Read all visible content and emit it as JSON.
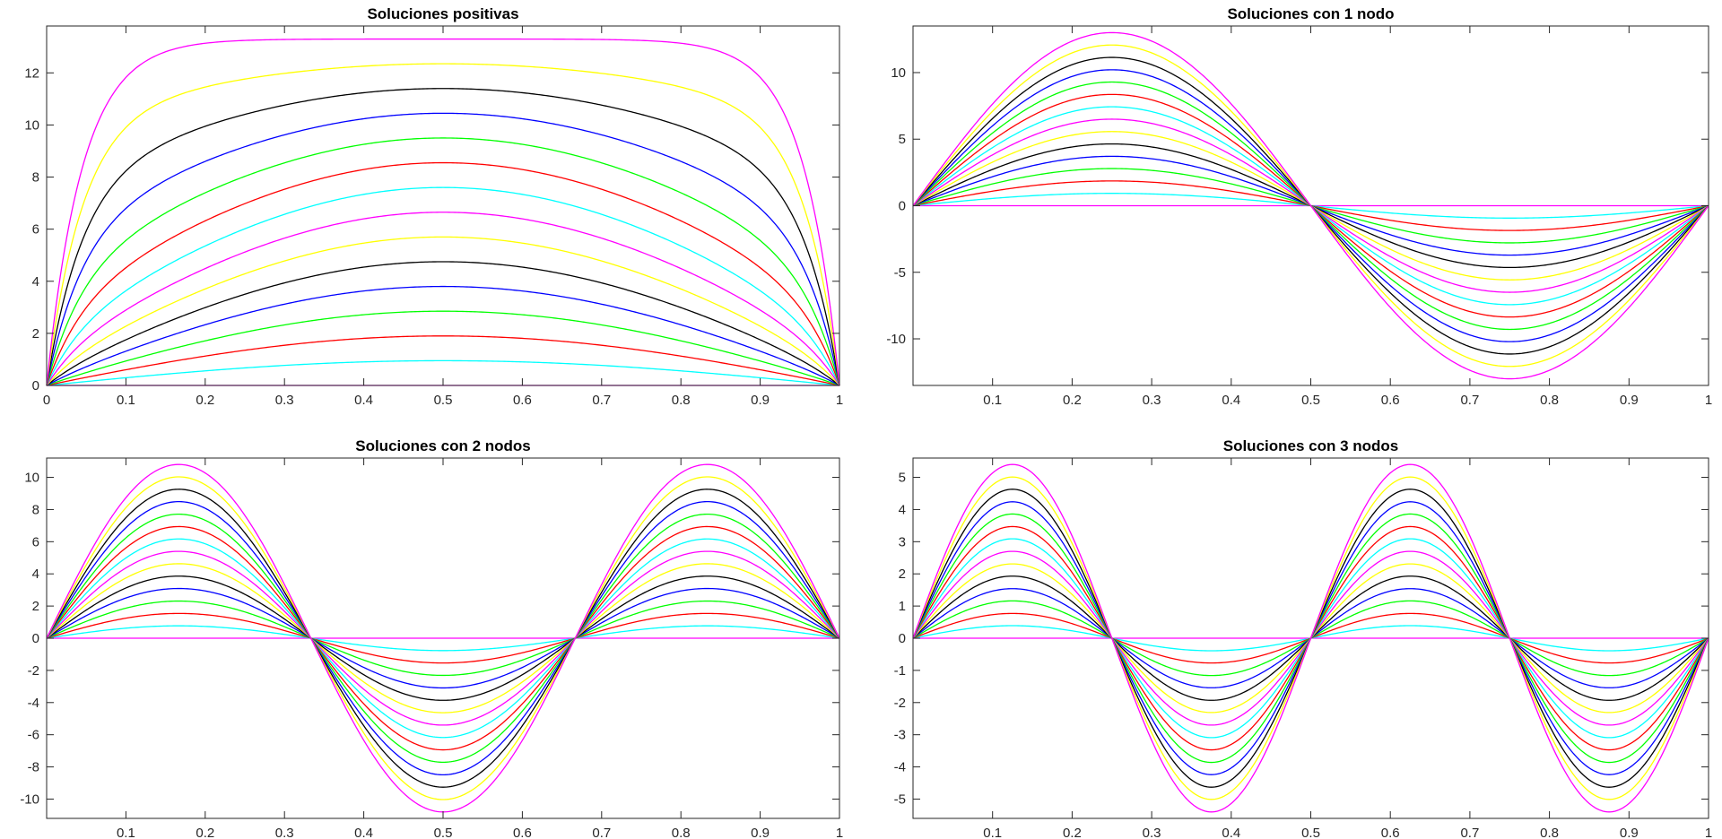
{
  "colors": [
    "#ff00ff",
    "#00ffff",
    "#ff0000",
    "#00ff00",
    "#0000ff",
    "#000000",
    "#ffff00"
  ],
  "chart_data": [
    {
      "type": "line",
      "title": "Soluciones positivas",
      "xlabel": "",
      "ylabel": "",
      "nodes": 0,
      "xlim": [
        0,
        1
      ],
      "ylim": [
        0,
        13.8
      ],
      "xticks": [
        0,
        0.1,
        0.2,
        0.3,
        0.4,
        0.5,
        0.6,
        0.7,
        0.8,
        0.9,
        1
      ],
      "xtick_labels": [
        "0",
        "0.1",
        "0.2",
        "0.3",
        "0.4",
        "0.5",
        "0.6",
        "0.7",
        "0.8",
        "0.9",
        "1"
      ],
      "yticks": [
        0,
        2,
        4,
        6,
        8,
        10,
        12
      ],
      "ytick_labels": [
        "0",
        "2",
        "4",
        "6",
        "8",
        "10",
        "12"
      ],
      "grid": false,
      "series_peaks": [
        0,
        0.95,
        1.9,
        2.85,
        3.8,
        4.75,
        5.7,
        6.65,
        7.6,
        8.55,
        9.5,
        10.45,
        11.4,
        12.35,
        13.3
      ]
    },
    {
      "type": "line",
      "title": "Soluciones con 1 nodo",
      "xlabel": "",
      "ylabel": "",
      "nodes": 1,
      "xlim": [
        0,
        1
      ],
      "ylim": [
        -13.5,
        13.5
      ],
      "xticks": [
        0.1,
        0.2,
        0.3,
        0.4,
        0.5,
        0.6,
        0.7,
        0.8,
        0.9,
        1
      ],
      "xtick_labels": [
        "0.1",
        "0.2",
        "0.3",
        "0.4",
        "0.5",
        "0.6",
        "0.7",
        "0.8",
        "0.9",
        "1"
      ],
      "yticks": [
        -10,
        -5,
        0,
        5,
        10
      ],
      "ytick_labels": [
        "-10",
        "-5",
        "0",
        "5",
        "10"
      ],
      "grid": false,
      "series_peaks": [
        0,
        0.93,
        1.86,
        2.79,
        3.71,
        4.64,
        5.57,
        6.5,
        7.43,
        8.36,
        9.29,
        10.21,
        11.14,
        12.07,
        13.0
      ]
    },
    {
      "type": "line",
      "title": "Soluciones con 2 nodos",
      "xlabel": "",
      "ylabel": "",
      "nodes": 2,
      "xlim": [
        0,
        1
      ],
      "ylim": [
        -11.2,
        11.2
      ],
      "xticks": [
        0.1,
        0.2,
        0.3,
        0.4,
        0.5,
        0.6,
        0.7,
        0.8,
        0.9,
        1
      ],
      "xtick_labels": [
        "0.1",
        "0.2",
        "0.3",
        "0.4",
        "0.5",
        "0.6",
        "0.7",
        "0.8",
        "0.9",
        "1"
      ],
      "yticks": [
        -10,
        -8,
        -6,
        -4,
        -2,
        0,
        2,
        4,
        6,
        8,
        10
      ],
      "ytick_labels": [
        "-10",
        "-8",
        "-6",
        "-4",
        "-2",
        "0",
        "2",
        "4",
        "6",
        "8",
        "10"
      ],
      "grid": false,
      "series_peaks": [
        0,
        0.77,
        1.54,
        2.31,
        3.09,
        3.86,
        4.63,
        5.4,
        6.17,
        6.94,
        7.71,
        8.49,
        9.26,
        10.03,
        10.8
      ]
    },
    {
      "type": "line",
      "title": "Soluciones con 3 nodos",
      "xlabel": "",
      "ylabel": "",
      "nodes": 3,
      "xlim": [
        0,
        1
      ],
      "ylim": [
        -5.6,
        5.6
      ],
      "xticks": [
        0.1,
        0.2,
        0.3,
        0.4,
        0.5,
        0.6,
        0.7,
        0.8,
        0.9,
        1
      ],
      "xtick_labels": [
        "0.1",
        "0.2",
        "0.3",
        "0.4",
        "0.5",
        "0.6",
        "0.7",
        "0.8",
        "0.9",
        "1"
      ],
      "yticks": [
        -5,
        -4,
        -3,
        -2,
        -1,
        0,
        1,
        2,
        3,
        4,
        5
      ],
      "ytick_labels": [
        "-5",
        "-4",
        "-3",
        "-2",
        "-1",
        "0",
        "1",
        "2",
        "3",
        "4",
        "5"
      ],
      "grid": false,
      "series_peaks": [
        0,
        0.39,
        0.77,
        1.16,
        1.54,
        1.93,
        2.31,
        2.7,
        3.09,
        3.47,
        3.86,
        4.24,
        4.63,
        5.01,
        5.4
      ]
    }
  ]
}
